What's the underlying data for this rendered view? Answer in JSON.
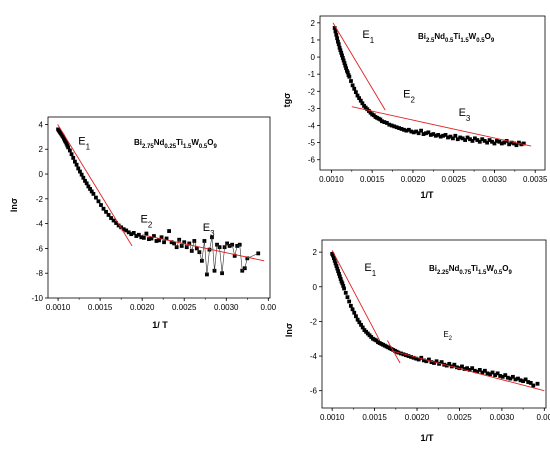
{
  "chart_data": [
    {
      "type": "scatter",
      "ylabel": "lnσ",
      "xlabel": "1/ T",
      "xlim": [
        0.00088,
        0.00352
      ],
      "ylim": [
        -10,
        4.6
      ],
      "xticks": [
        "0.0010",
        "0.0015",
        "0.0020",
        "0.0025",
        "0.0030",
        "0.00"
      ],
      "yticks": [
        "4",
        "2",
        "0",
        "-2",
        "-4",
        "-6",
        "-8",
        "-10"
      ],
      "composition": "Bi2.75Nd0.25Ti1.5W0.5O9",
      "formula_parts": [
        {
          "t": "Bi",
          "sub": false
        },
        {
          "t": "2.75",
          "sub": true
        },
        {
          "t": "Nd",
          "sub": false
        },
        {
          "t": "0.25",
          "sub": true
        },
        {
          "t": "Ti",
          "sub": false
        },
        {
          "t": "1.5",
          "sub": true
        },
        {
          "t": "W",
          "sub": false
        },
        {
          "t": "0.5",
          "sub": true
        },
        {
          "t": "O",
          "sub": false
        },
        {
          "t": "9",
          "sub": true
        }
      ],
      "annotations": [
        {
          "base": "E",
          "sub": "1",
          "x": 0.00124,
          "y": 2.4
        },
        {
          "base": "E",
          "sub": "2",
          "x": 0.00198,
          "y": -3.9
        },
        {
          "base": "E",
          "sub": "3",
          "x": 0.00272,
          "y": -4.6
        }
      ],
      "series": [
        {
          "x": [
            0.001,
            0.00101,
            0.00102,
            0.00103,
            0.00104,
            0.00105,
            0.00106,
            0.00107,
            0.00108,
            0.00109,
            0.0011,
            0.00111,
            0.00112,
            0.00114,
            0.00116,
            0.00118,
            0.0012,
            0.00122,
            0.00124,
            0.00126,
            0.00128,
            0.0013,
            0.00132,
            0.00134,
            0.00136,
            0.00138,
            0.0014,
            0.00142,
            0.00145,
            0.00148,
            0.00151,
            0.00154,
            0.00157,
            0.0016,
            0.00163,
            0.00166,
            0.00169,
            0.00172,
            0.00175,
            0.00178,
            0.00181,
            0.00184,
            0.00187,
            0.0019,
            0.00193,
            0.00196,
            0.00199,
            0.00202,
            0.00205,
            0.00208,
            0.00211,
            0.00214,
            0.00217,
            0.0022,
            0.00223,
            0.00226,
            0.00229,
            0.00232,
            0.00235,
            0.00238,
            0.00241,
            0.00244,
            0.00247,
            0.0025,
            0.00253,
            0.00256,
            0.00259,
            0.00262,
            0.00265,
            0.00268,
            0.00271,
            0.00274,
            0.00277,
            0.0028,
            0.00283,
            0.00286,
            0.00289,
            0.00292,
            0.00295,
            0.00298,
            0.00301,
            0.00304,
            0.00307,
            0.0031,
            0.00313,
            0.00316,
            0.00319,
            0.00322,
            0.00325,
            0.00338
          ],
          "y": [
            3.6,
            3.5,
            3.4,
            3.3,
            3.2,
            3.1,
            3.0,
            2.85,
            2.7,
            2.6,
            2.45,
            2.3,
            2.15,
            1.9,
            1.6,
            1.3,
            1.0,
            0.75,
            0.45,
            0.2,
            -0.05,
            -0.3,
            -0.55,
            -0.75,
            -1.0,
            -1.2,
            -1.4,
            -1.6,
            -1.9,
            -2.2,
            -2.5,
            -2.8,
            -3.05,
            -3.3,
            -3.55,
            -3.75,
            -3.95,
            -4.15,
            -4.3,
            -4.45,
            -4.55,
            -4.7,
            -4.85,
            -4.75,
            -5.0,
            -4.9,
            -5.1,
            -5.15,
            -4.8,
            -5.25,
            -5.2,
            -5.0,
            -5.4,
            -5.35,
            -5.1,
            -5.5,
            -5.2,
            -4.6,
            -5.5,
            -5.6,
            -5.9,
            -5.3,
            -5.8,
            -5.5,
            -5.9,
            -5.6,
            -6.2,
            -5.4,
            -6.0,
            -6.3,
            -7.0,
            -5.4,
            -8.1,
            -6.1,
            -5.1,
            -7.8,
            -5.7,
            -5.9,
            -8.0,
            -5.9,
            -5.6,
            -5.8,
            -5.7,
            -6.6,
            -5.8,
            -5.7,
            -7.8,
            -7.6,
            -6.8,
            -6.4
          ]
        }
      ],
      "fits": [
        {
          "x": [
            0.000995,
            0.00188
          ],
          "y": [
            4.0,
            -5.8
          ]
        },
        {
          "x": [
            0.002,
            0.00345
          ],
          "y": [
            -4.9,
            -7.0
          ]
        }
      ]
    },
    {
      "type": "scatter",
      "ylabel": "tgσ",
      "xlabel": "1/T",
      "xlim": [
        0.00086,
        0.00362
      ],
      "ylim": [
        -6.6,
        2.4
      ],
      "xticks": [
        "0.0010",
        "0.0015",
        "0.0020",
        "0.0025",
        "0.0030",
        "0.0035"
      ],
      "yticks": [
        "2",
        "1",
        "0",
        "-1",
        "-2",
        "-3",
        "-4",
        "-5",
        "-6"
      ],
      "composition": "Bi2.5Nd0.5Ti1.5W0.5O9",
      "formula_parts": [
        {
          "t": "Bi",
          "sub": false
        },
        {
          "t": "2.5",
          "sub": true
        },
        {
          "t": "Nd",
          "sub": false
        },
        {
          "t": "0.5",
          "sub": true
        },
        {
          "t": "Ti",
          "sub": false
        },
        {
          "t": "1.5",
          "sub": true
        },
        {
          "t": "W",
          "sub": false
        },
        {
          "t": "0.5",
          "sub": true
        },
        {
          "t": "O",
          "sub": false
        },
        {
          "t": "9",
          "sub": true
        }
      ],
      "annotations": [
        {
          "base": "E",
          "sub": "1",
          "x": 0.00138,
          "y": 1.1
        },
        {
          "base": "E",
          "sub": "2",
          "x": 0.00188,
          "y": -2.35
        },
        {
          "base": "E",
          "sub": "3",
          "x": 0.00256,
          "y": -3.45
        }
      ],
      "series": [
        {
          "x": [
            0.00104,
            0.00105,
            0.00106,
            0.00107,
            0.00108,
            0.00109,
            0.0011,
            0.00111,
            0.00112,
            0.00113,
            0.00114,
            0.00115,
            0.00116,
            0.00117,
            0.00118,
            0.00119,
            0.0012,
            0.00121,
            0.00122,
            0.00124,
            0.00126,
            0.00128,
            0.0013,
            0.00132,
            0.00134,
            0.00136,
            0.00138,
            0.0014,
            0.00142,
            0.00144,
            0.00146,
            0.00148,
            0.0015,
            0.00152,
            0.00154,
            0.00156,
            0.00158,
            0.0016,
            0.00162,
            0.00165,
            0.00168,
            0.00171,
            0.00174,
            0.00177,
            0.0018,
            0.00183,
            0.00186,
            0.00189,
            0.00192,
            0.00195,
            0.00198,
            0.00201,
            0.00204,
            0.00207,
            0.0021,
            0.00213,
            0.00216,
            0.00219,
            0.00222,
            0.00225,
            0.00228,
            0.00231,
            0.00234,
            0.00237,
            0.0024,
            0.00243,
            0.00246,
            0.00249,
            0.00252,
            0.00255,
            0.00258,
            0.00261,
            0.00264,
            0.00267,
            0.0027,
            0.00273,
            0.00276,
            0.00279,
            0.00282,
            0.00285,
            0.00288,
            0.00291,
            0.00294,
            0.00297,
            0.003,
            0.00303,
            0.00306,
            0.00309,
            0.00312,
            0.00315,
            0.00318,
            0.00321,
            0.00324,
            0.00327,
            0.0033,
            0.00333,
            0.00336
          ],
          "y": [
            1.7,
            1.5,
            1.3,
            1.1,
            0.9,
            0.75,
            0.55,
            0.4,
            0.25,
            0.1,
            -0.05,
            -0.2,
            -0.35,
            -0.5,
            -0.65,
            -0.8,
            -0.9,
            -1.05,
            -1.15,
            -1.4,
            -1.65,
            -1.85,
            -2.05,
            -2.25,
            -2.4,
            -2.55,
            -2.7,
            -2.85,
            -2.95,
            -3.05,
            -3.15,
            -3.25,
            -3.35,
            -3.4,
            -3.5,
            -3.55,
            -3.6,
            -3.65,
            -3.75,
            -3.8,
            -3.85,
            -3.95,
            -4.0,
            -4.05,
            -4.1,
            -4.15,
            -4.2,
            -4.25,
            -4.3,
            -4.25,
            -4.35,
            -4.4,
            -4.35,
            -4.45,
            -4.3,
            -4.5,
            -4.45,
            -4.4,
            -4.55,
            -4.5,
            -4.6,
            -4.55,
            -4.65,
            -4.6,
            -4.55,
            -4.7,
            -4.65,
            -4.75,
            -4.6,
            -4.8,
            -4.7,
            -4.75,
            -4.85,
            -4.7,
            -4.8,
            -4.9,
            -4.75,
            -4.85,
            -4.95,
            -4.8,
            -4.9,
            -5.0,
            -4.85,
            -4.95,
            -5.05,
            -4.9,
            -4.95,
            -5.05,
            -5.0,
            -4.9,
            -5.1,
            -5.0,
            -5.05,
            -5.15,
            -5.0,
            -5.1,
            -5.05
          ]
        }
      ],
      "fits": [
        {
          "x": [
            0.00102,
            0.00166
          ],
          "y": [
            2.0,
            -3.1
          ]
        },
        {
          "x": [
            0.00125,
            0.00345
          ],
          "y": [
            -2.9,
            -5.2
          ]
        }
      ]
    },
    {
      "type": "scatter",
      "ylabel": "lnσ",
      "xlabel": "1/T",
      "xlim": [
        0.00088,
        0.00352
      ],
      "ylim": [
        -7.0,
        2.7
      ],
      "xticks": [
        "0.0010",
        "0.0015",
        "0.0020",
        "0.0025",
        "0.0030",
        "0.00"
      ],
      "yticks": [
        "2",
        "0",
        "-2",
        "-4",
        "-6"
      ],
      "composition": "Bi2.25Nd0.75Ti1.5W0.5O9",
      "formula_parts": [
        {
          "t": "Bi",
          "sub": false
        },
        {
          "t": "2.25",
          "sub": true
        },
        {
          "t": "Nd",
          "sub": false
        },
        {
          "t": "0.75",
          "sub": true
        },
        {
          "t": "Ti",
          "sub": false
        },
        {
          "t": "1.5",
          "sub": true
        },
        {
          "t": "W",
          "sub": false
        },
        {
          "t": "0.5",
          "sub": true
        },
        {
          "t": "O",
          "sub": false
        },
        {
          "t": "9",
          "sub": true
        }
      ],
      "annotations": [
        {
          "base": "E",
          "sub": "1",
          "x": 0.00138,
          "y": 0.9
        },
        {
          "base": "E",
          "sub": "2",
          "x": 0.00231,
          "y": -2.9
        }
      ],
      "series": [
        {
          "x": [
            0.001,
            0.00101,
            0.00102,
            0.00103,
            0.00104,
            0.00105,
            0.00106,
            0.00107,
            0.00108,
            0.00109,
            0.0011,
            0.00111,
            0.00112,
            0.00113,
            0.00114,
            0.00116,
            0.00118,
            0.0012,
            0.00122,
            0.00124,
            0.00126,
            0.00128,
            0.0013,
            0.00132,
            0.00134,
            0.00136,
            0.00138,
            0.0014,
            0.00142,
            0.00144,
            0.00146,
            0.00148,
            0.0015,
            0.00152,
            0.00154,
            0.00156,
            0.00158,
            0.0016,
            0.00162,
            0.00164,
            0.00166,
            0.00168,
            0.0017,
            0.00172,
            0.00174,
            0.00176,
            0.00178,
            0.00181,
            0.00184,
            0.00187,
            0.0019,
            0.00193,
            0.00196,
            0.00199,
            0.00202,
            0.00205,
            0.00208,
            0.00211,
            0.00214,
            0.00217,
            0.0022,
            0.00223,
            0.00226,
            0.00229,
            0.00232,
            0.00235,
            0.00238,
            0.00241,
            0.00244,
            0.00247,
            0.0025,
            0.00253,
            0.00256,
            0.00259,
            0.00262,
            0.00265,
            0.00268,
            0.00271,
            0.00274,
            0.00277,
            0.0028,
            0.00283,
            0.00286,
            0.00289,
            0.00292,
            0.00295,
            0.00298,
            0.00301,
            0.00304,
            0.00307,
            0.0031,
            0.00313,
            0.00316,
            0.00319,
            0.00322,
            0.00325,
            0.00328,
            0.00331,
            0.00334,
            0.00337,
            0.00342
          ],
          "y": [
            1.9,
            1.8,
            1.65,
            1.5,
            1.35,
            1.2,
            1.05,
            0.9,
            0.75,
            0.6,
            0.45,
            0.3,
            0.2,
            0.05,
            -0.1,
            -0.35,
            -0.6,
            -0.85,
            -1.1,
            -1.3,
            -1.5,
            -1.7,
            -1.9,
            -2.05,
            -2.2,
            -2.35,
            -2.5,
            -2.6,
            -2.7,
            -2.8,
            -2.9,
            -3.0,
            -3.05,
            -3.1,
            -3.2,
            -3.25,
            -3.3,
            -3.35,
            -3.4,
            -3.45,
            -3.5,
            -3.55,
            -3.6,
            -3.65,
            -3.7,
            -3.75,
            -3.8,
            -3.85,
            -3.9,
            -3.95,
            -4.0,
            -4.05,
            -4.1,
            -4.15,
            -4.2,
            -4.1,
            -4.25,
            -4.3,
            -4.2,
            -4.35,
            -4.4,
            -4.3,
            -4.45,
            -4.35,
            -4.5,
            -4.55,
            -4.45,
            -4.6,
            -4.5,
            -4.65,
            -4.7,
            -4.6,
            -4.75,
            -4.7,
            -4.8,
            -4.7,
            -4.85,
            -4.9,
            -4.8,
            -4.95,
            -4.85,
            -5.0,
            -5.05,
            -4.95,
            -5.1,
            -5.0,
            -5.15,
            -5.2,
            -5.1,
            -5.25,
            -5.3,
            -5.2,
            -5.35,
            -5.3,
            -5.4,
            -5.45,
            -5.35,
            -5.5,
            -5.55,
            -5.7,
            -5.6
          ]
        }
      ],
      "fits": [
        {
          "x": [
            0.001,
            0.00156
          ],
          "y": [
            2.1,
            -3.1
          ]
        },
        {
          "x": [
            0.00165,
            0.0018
          ],
          "y": [
            -3.1,
            -4.4
          ]
        },
        {
          "x": [
            0.0017,
            0.0035
          ],
          "y": [
            -3.7,
            -6.0
          ]
        }
      ]
    }
  ]
}
